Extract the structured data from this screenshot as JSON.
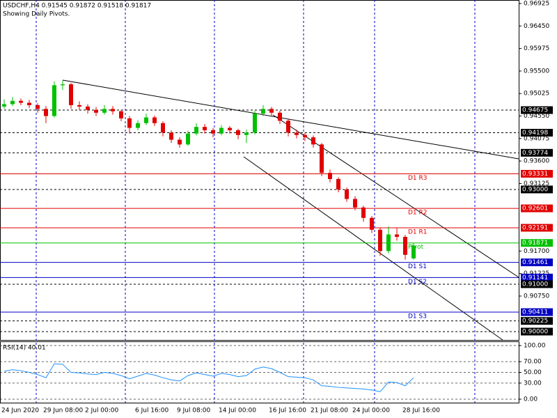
{
  "chart_data": [
    {
      "type": "candlestick",
      "title": "USDCHF,H4  0.91545 0.91872 0.91518 0.91817",
      "subtitle": "Showing Daily Pivots.",
      "up_color": "#00c000",
      "down_color": "#e00000",
      "categories": [
        "24 Jun 2020",
        null,
        null,
        null,
        null,
        "29 Jun 08:00",
        null,
        null,
        null,
        null,
        "2 Jul 00:00",
        null,
        null,
        null,
        null,
        null,
        "6 Jul 16:00",
        null,
        null,
        null,
        null,
        "9 Jul 08:00",
        null,
        null,
        null,
        null,
        "14 Jul 00:00",
        null,
        null,
        null,
        null,
        null,
        "16 Jul 16:00",
        null,
        null,
        null,
        null,
        "21 Jul 08:00",
        null,
        null,
        null,
        null,
        "24 Jul 00:00",
        null,
        null,
        null,
        null,
        null,
        "28 Jul 16:00",
        null
      ],
      "ohlc": [
        [
          0.9475,
          0.949,
          0.947,
          0.948
        ],
        [
          0.948,
          0.9495,
          0.9476,
          0.9487
        ],
        [
          0.9487,
          0.9492,
          0.9478,
          0.9483
        ],
        [
          0.9483,
          0.9489,
          0.9472,
          0.9478
        ],
        [
          0.9478,
          0.9482,
          0.9462,
          0.947
        ],
        [
          0.947,
          0.9476,
          0.944,
          0.9455
        ],
        [
          0.9455,
          0.9528,
          0.9452,
          0.952
        ],
        [
          0.952,
          0.953,
          0.951,
          0.9522
        ],
        [
          0.9522,
          0.9525,
          0.947,
          0.9478
        ],
        [
          0.9478,
          0.9486,
          0.9468,
          0.9475
        ],
        [
          0.9475,
          0.948,
          0.946,
          0.9468
        ],
        [
          0.9468,
          0.9474,
          0.9455,
          0.9462
        ],
        [
          0.9462,
          0.9478,
          0.9458,
          0.947
        ],
        [
          0.947,
          0.9476,
          0.9458,
          0.9465
        ],
        [
          0.9465,
          0.9468,
          0.9444,
          0.945
        ],
        [
          0.945,
          0.9455,
          0.9418,
          0.943
        ],
        [
          0.943,
          0.9446,
          0.9425,
          0.944
        ],
        [
          0.944,
          0.946,
          0.9436,
          0.9452
        ],
        [
          0.9452,
          0.9456,
          0.9434,
          0.944
        ],
        [
          0.944,
          0.9444,
          0.9412,
          0.942
        ],
        [
          0.942,
          0.9425,
          0.9398,
          0.9405
        ],
        [
          0.9405,
          0.941,
          0.9388,
          0.9395
        ],
        [
          0.9395,
          0.9424,
          0.9392,
          0.9418
        ],
        [
          0.9418,
          0.944,
          0.9414,
          0.9432
        ],
        [
          0.9432,
          0.9438,
          0.9418,
          0.9425
        ],
        [
          0.9425,
          0.943,
          0.941,
          0.9418
        ],
        [
          0.9418,
          0.9436,
          0.9414,
          0.943
        ],
        [
          0.943,
          0.9434,
          0.9418,
          0.9425
        ],
        [
          0.9425,
          0.9428,
          0.9406,
          0.9415
        ],
        [
          0.9415,
          0.9426,
          0.9398,
          0.942
        ],
        [
          0.942,
          0.9466,
          0.9416,
          0.946
        ],
        [
          0.946,
          0.9478,
          0.9455,
          0.947
        ],
        [
          0.947,
          0.9474,
          0.9456,
          0.9462
        ],
        [
          0.9462,
          0.9466,
          0.9438,
          0.9445
        ],
        [
          0.9445,
          0.9448,
          0.9412,
          0.942
        ],
        [
          0.942,
          0.9426,
          0.9408,
          0.9415
        ],
        [
          0.9415,
          0.942,
          0.9402,
          0.941
        ],
        [
          0.941,
          0.9414,
          0.9388,
          0.9395
        ],
        [
          0.9395,
          0.9398,
          0.9328,
          0.9335
        ],
        [
          0.9335,
          0.9342,
          0.9315,
          0.9322
        ],
        [
          0.9322,
          0.9326,
          0.9294,
          0.93
        ],
        [
          0.93,
          0.9304,
          0.9274,
          0.928
        ],
        [
          0.928,
          0.9286,
          0.9256,
          0.9262
        ],
        [
          0.9262,
          0.9266,
          0.9232,
          0.924
        ],
        [
          0.924,
          0.9244,
          0.9208,
          0.9215
        ],
        [
          0.9215,
          0.922,
          0.916,
          0.917
        ],
        [
          0.917,
          0.9222,
          0.9165,
          0.9205
        ],
        [
          0.9205,
          0.9218,
          0.9192,
          0.92
        ],
        [
          0.92,
          0.9204,
          0.9152,
          0.9162
        ],
        [
          0.91545,
          0.91872,
          0.91518,
          0.91817
        ]
      ],
      "ylim": [
        0.89823,
        0.96999
      ],
      "yticks": [
        {
          "value": 0.96925,
          "label": "0.96925"
        },
        {
          "value": 0.9645,
          "label": "0.96450"
        },
        {
          "value": 0.95975,
          "label": "0.95975"
        },
        {
          "value": 0.955,
          "label": "0.95500"
        },
        {
          "value": 0.95025,
          "label": "0.95025"
        },
        {
          "value": 0.9455,
          "label": "0.94550"
        },
        {
          "value": 0.94075,
          "label": "0.94075"
        },
        {
          "value": 0.936,
          "label": "0.93600"
        },
        {
          "value": 0.93125,
          "label": "0.93125"
        },
        {
          "value": 0.917,
          "label": "0.91700"
        },
        {
          "value": 0.91225,
          "label": "0.91225"
        },
        {
          "value": 0.9075,
          "label": "0.90750"
        }
      ],
      "levels": [
        {
          "price": {
            "value": 0.94675,
            "label": "0.94675"
          },
          "color": "#000000",
          "style": "dashed"
        },
        {
          "price": {
            "value": 0.94198,
            "label": "0.94198"
          },
          "color": "#000000",
          "style": "dashed"
        },
        {
          "price": {
            "value": 0.93774,
            "label": "0.93774"
          },
          "color": "#000000",
          "style": "dashed"
        },
        {
          "price": {
            "value": 0.93331,
            "label": "0.93331"
          },
          "color": "#e00000",
          "style": "solid",
          "name": "D1 R3"
        },
        {
          "price": {
            "value": 0.93,
            "label": "0.93000"
          },
          "color": "#000000",
          "style": "dashed"
        },
        {
          "price": {
            "value": 0.92601,
            "label": "0.92601"
          },
          "color": "#e00000",
          "style": "solid",
          "name": "D1 R2"
        },
        {
          "price": {
            "value": 0.92191,
            "label": "0.92191"
          },
          "color": "#e00000",
          "style": "solid",
          "name": "D1 R1"
        },
        {
          "price": {
            "value": 0.91871,
            "label": "0.91871"
          },
          "color": "#00c000",
          "style": "solid",
          "name": "Pivot"
        },
        {
          "price": {
            "value": 0.91461,
            "label": "0.91461"
          },
          "color": "#0000c0",
          "style": "solid",
          "name": "D1 S1"
        },
        {
          "price": {
            "value": 0.91141,
            "label": "0.91141"
          },
          "color": "#0000c0",
          "style": "solid",
          "name": "D1 S2"
        },
        {
          "price": {
            "value": 0.91,
            "label": "0.91000"
          },
          "color": "#000000",
          "style": "dashed"
        },
        {
          "price": {
            "value": 0.90411,
            "label": "0.90411"
          },
          "color": "#0000c0",
          "style": "solid",
          "name": "D1 S3"
        },
        {
          "price": {
            "value": 0.90225,
            "label": "0.90225"
          },
          "color": "#000000",
          "style": "dashed"
        },
        {
          "price": {
            "value": 0.9,
            "label": "0.90000"
          },
          "color": "#000000",
          "style": "dashed"
        }
      ]
    },
    {
      "type": "line",
      "title": "RSI(14) 40.01",
      "color": "#1e90ff",
      "values": [
        52,
        55,
        53,
        50,
        46,
        40,
        66,
        65,
        50,
        49,
        47,
        46,
        50,
        48,
        44,
        38,
        43,
        48,
        45,
        40,
        36,
        34,
        44,
        49,
        46,
        43,
        48,
        46,
        42,
        44,
        56,
        60,
        57,
        50,
        42,
        41,
        40,
        36,
        25,
        24,
        22,
        21,
        20,
        19,
        17,
        14,
        32,
        31,
        25,
        40.01
      ],
      "ylim": [
        -6.49,
        107.79
      ],
      "yticks": [
        {
          "value": 100,
          "label": "100.00"
        },
        {
          "value": 70,
          "label": "70.00"
        },
        {
          "value": 50,
          "label": "50.00"
        },
        {
          "value": 30,
          "label": "30.00"
        },
        {
          "value": 0,
          "label": "0.00"
        }
      ],
      "grid": true
    }
  ]
}
